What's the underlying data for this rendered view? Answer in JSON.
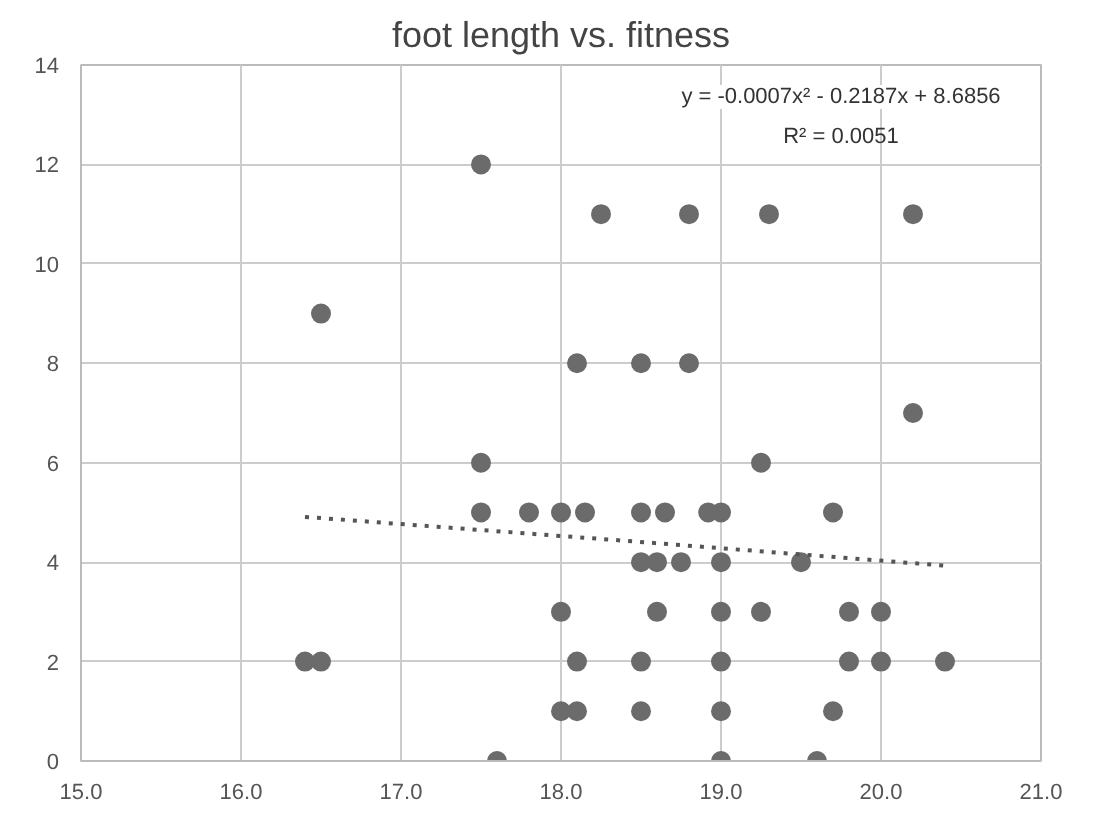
{
  "chart_data": {
    "type": "scatter",
    "title": "foot length vs. fitness",
    "xlim": [
      15,
      21
    ],
    "ylim": [
      0,
      14
    ],
    "xticks": [
      {
        "value": 15,
        "label": "15.0"
      },
      {
        "value": 16,
        "label": "16.0"
      },
      {
        "value": 17,
        "label": "17.0"
      },
      {
        "value": 18,
        "label": "18.0"
      },
      {
        "value": 19,
        "label": "19.0"
      },
      {
        "value": 20,
        "label": "20.0"
      },
      {
        "value": 21,
        "label": "21.0"
      }
    ],
    "yticks": [
      0,
      2,
      4,
      6,
      8,
      10,
      12,
      14
    ],
    "grid": true,
    "marker": "circle",
    "annotations": [
      "y = -0.0007x² - 0.2187x + 8.6856",
      "R² = 0.0051"
    ],
    "series": [
      {
        "color": "#6b6b6b",
        "x": [
          17.5,
          16.5,
          18.25,
          18.8,
          19.3,
          20.2,
          18.1,
          18.5,
          18.8,
          20.2,
          19.25,
          17.5,
          17.5,
          17.8,
          18.0,
          18.15,
          18.5,
          18.65,
          18.92,
          19.0,
          19.7,
          18.5,
          18.6,
          18.75,
          19.0,
          19.5,
          18.0,
          18.6,
          19.0,
          19.25,
          19.8,
          20.0,
          19.8,
          20.0,
          20.4,
          16.4,
          16.5,
          18.1,
          18.5,
          19.0,
          18.0,
          18.1,
          18.5,
          19.0,
          19.7,
          17.6,
          19.0,
          19.6
        ],
        "values": [
          12,
          9,
          11,
          11,
          11,
          11,
          8,
          8,
          8,
          7,
          6,
          6,
          5,
          5,
          5,
          5,
          5,
          5,
          5,
          5,
          5,
          4,
          4,
          4,
          4,
          4,
          3,
          3,
          3,
          3,
          3,
          3,
          2,
          2,
          2,
          2,
          2,
          2,
          2,
          2,
          1,
          1,
          1,
          1,
          1,
          0,
          0,
          0
        ]
      },
      {
        "type": "line",
        "color": "#555555",
        "line_style": "dotted",
        "marker": "none",
        "x": [
          16.4,
          17.4,
          18.4,
          19.4,
          20.4
        ],
        "values": [
          4.91,
          4.67,
          4.43,
          4.18,
          3.93
        ]
      }
    ]
  }
}
